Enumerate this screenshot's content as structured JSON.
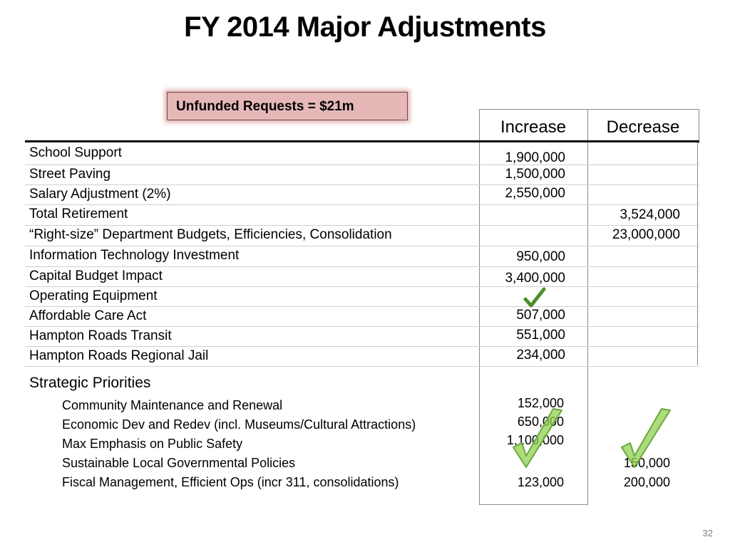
{
  "slide": {
    "title": "FY 2014 Major Adjustments",
    "callout": "Unfunded Requests = $21m",
    "page_number": "32"
  },
  "table": {
    "headers": {
      "increase": "Increase",
      "decrease": "Decrease"
    },
    "rows": [
      {
        "label": "School Support",
        "increase": "1,900,000",
        "decrease": ""
      },
      {
        "label": "Street Paving",
        "increase": "1,500,000",
        "decrease": ""
      },
      {
        "label": "Salary Adjustment (2%)",
        "increase": "2,550,000",
        "decrease": ""
      },
      {
        "label": "Total Retirement",
        "increase": "",
        "decrease": "3,524,000"
      },
      {
        "label": "“Right-size” Department Budgets, Efficiencies, Consolidation",
        "increase": "",
        "decrease": "23,000,000"
      },
      {
        "label": "Information Technology Investment",
        "increase": "950,000",
        "decrease": ""
      },
      {
        "label": "Capital Budget Impact",
        "increase": "3,400,000",
        "decrease": ""
      },
      {
        "label": "Operating Equipment",
        "increase": "",
        "decrease": "",
        "check": true
      },
      {
        "label": "Affordable Care Act",
        "increase": "507,000",
        "decrease": ""
      },
      {
        "label": "Hampton Roads Transit",
        "increase": "551,000",
        "decrease": ""
      },
      {
        "label": "Hampton Roads Regional Jail",
        "increase": "234,000",
        "decrease": ""
      }
    ],
    "strategic": {
      "heading": "Strategic Priorities",
      "items": [
        {
          "label": "Community Maintenance and Renewal",
          "increase": "152,000",
          "decrease": ""
        },
        {
          "label": "Economic Dev and Redev (incl. Museums/Cultural Attractions)",
          "increase": "650,000",
          "decrease": ""
        },
        {
          "label": "Max Emphasis on Public Safety",
          "increase": "1,100,000",
          "decrease": ""
        },
        {
          "label": "Sustainable Local Governmental Policies",
          "increase": "",
          "decrease": "150,000"
        },
        {
          "label": "Fiscal Management, Efficient Ops (incr 311, consolidations)",
          "increase": "123,000",
          "decrease": "200,000"
        }
      ]
    }
  },
  "colors": {
    "check_dark": "#4a8f2a",
    "check_light": "#92d050",
    "callout_fill": "#e5b8b7"
  },
  "icons": [
    "checkmark-icon"
  ]
}
